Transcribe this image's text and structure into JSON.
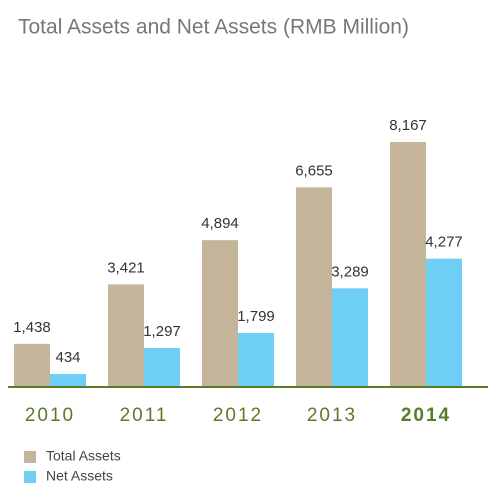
{
  "chart_data": {
    "type": "bar",
    "title": "Total Assets and Net Assets (RMB Million)",
    "categories": [
      "2010",
      "2011",
      "2012",
      "2013",
      "2014"
    ],
    "series": [
      {
        "name": "Total Assets",
        "color": "#c4b49a",
        "values": [
          1438,
          3421,
          4894,
          6655,
          8167
        ],
        "value_labels": [
          "1,438",
          "3,421",
          "4,894",
          "6,655",
          "8,167"
        ]
      },
      {
        "name": "Net Assets",
        "color": "#6dcff6",
        "values": [
          434,
          1297,
          1799,
          3289,
          4277
        ],
        "value_labels": [
          "434",
          "1,297",
          "1,799",
          "3,289",
          "4,277"
        ]
      }
    ]
  }
}
